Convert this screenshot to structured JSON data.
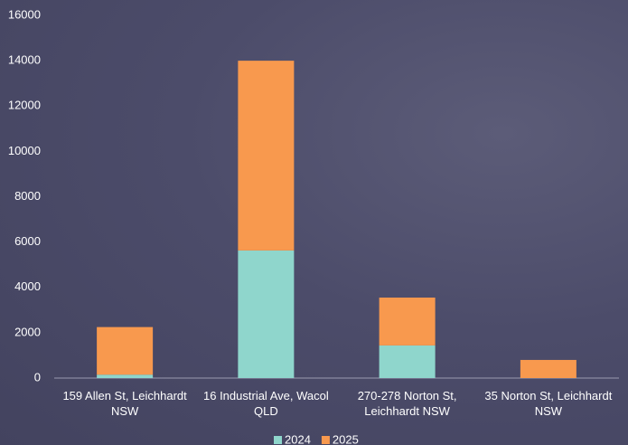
{
  "chart_data": {
    "type": "stacked_bar",
    "categories": [
      "159 Allen St, Leichhardt NSW",
      "16 Industrial Ave, Wacol QLD",
      "270-278 Norton St, Leichhardt NSW",
      "35 Norton St, Leichhardt NSW"
    ],
    "series": [
      {
        "name": "2024",
        "color": "#8fd6cc",
        "values": [
          150,
          5630,
          1440,
          0
        ]
      },
      {
        "name": "2025",
        "color": "#f8994e",
        "values": [
          2100,
          8370,
          2110,
          800
        ]
      }
    ],
    "ylim": [
      0,
      16000
    ],
    "yticks": [
      0,
      2000,
      4000,
      6000,
      8000,
      10000,
      12000,
      14000,
      16000
    ]
  }
}
